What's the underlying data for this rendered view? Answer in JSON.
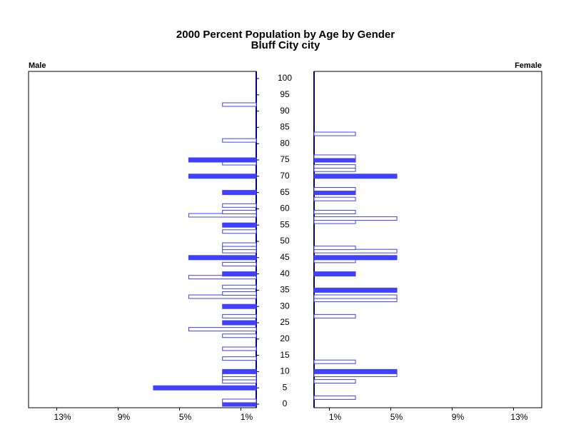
{
  "chart_data": {
    "type": "population-pyramid",
    "title": "2000 Percent Population by Age by Gender",
    "subtitle": "Bluff City city",
    "ylim": [
      0,
      100
    ],
    "yticks": [
      0,
      5,
      10,
      15,
      20,
      25,
      30,
      35,
      40,
      45,
      50,
      55,
      60,
      65,
      70,
      75,
      80,
      85,
      90,
      95,
      100
    ],
    "xlim": [
      0,
      14.84
    ],
    "xticks": [
      {
        "value": 13,
        "label": "13%"
      },
      {
        "value": 9,
        "label": "9%"
      },
      {
        "value": 5,
        "label": "5%"
      },
      {
        "value": 1,
        "label": "1%"
      }
    ],
    "series": [
      {
        "name": "Male",
        "color": "#4040ff",
        "ages": [
          0,
          1,
          5,
          7,
          8,
          9,
          10,
          14,
          17,
          21,
          23,
          25,
          27,
          30,
          33,
          34,
          36,
          39,
          40,
          43,
          45,
          47,
          48,
          49,
          53,
          55,
          58,
          59,
          61,
          65,
          70,
          74,
          75,
          81,
          92
        ],
        "values": [
          2.2,
          2.2,
          6.7,
          2.2,
          2.2,
          2.2,
          2.2,
          2.2,
          2.2,
          2.2,
          4.4,
          2.2,
          2.2,
          2.2,
          4.4,
          2.2,
          2.2,
          4.4,
          2.2,
          2.2,
          4.4,
          2.2,
          2.2,
          2.2,
          2.2,
          2.2,
          4.4,
          2.2,
          2.2,
          2.2,
          4.4,
          2.2,
          4.4,
          2.2,
          2.2
        ]
      },
      {
        "name": "Female",
        "color": "#4040ff",
        "ages": [
          2,
          7,
          9,
          10,
          13,
          27,
          32,
          33,
          35,
          40,
          44,
          45,
          47,
          48,
          56,
          57,
          59,
          63,
          65,
          66,
          70,
          72,
          73,
          75,
          76,
          83
        ],
        "values": [
          2.7,
          2.7,
          5.4,
          5.4,
          2.7,
          2.7,
          5.4,
          5.4,
          5.4,
          2.7,
          2.7,
          5.4,
          5.4,
          2.7,
          2.7,
          5.4,
          2.7,
          2.7,
          2.7,
          2.7,
          5.4,
          2.7,
          2.7,
          2.7,
          2.7,
          2.7
        ]
      }
    ]
  }
}
